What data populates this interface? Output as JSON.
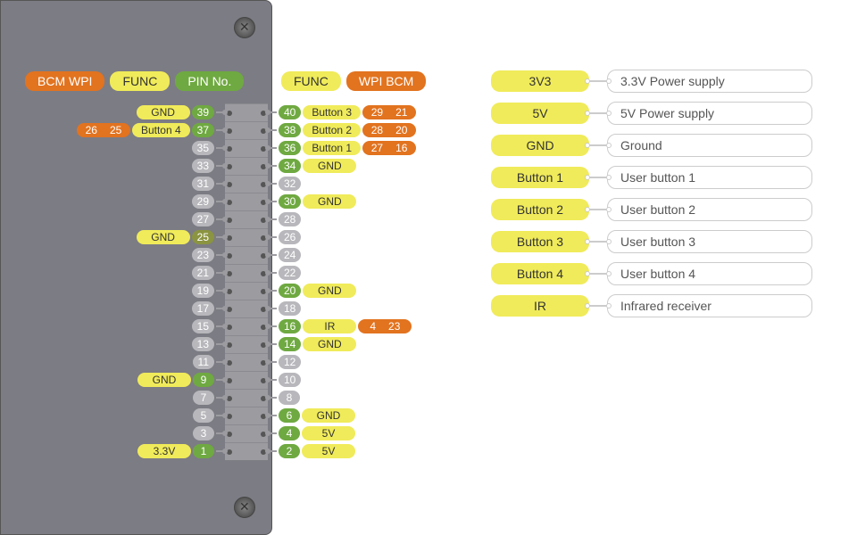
{
  "colors": {
    "orange": "#e2731f",
    "yellow": "#f0eb5a",
    "green": "#6fa941",
    "gray": "#b7b7bc",
    "board": "#7c7c84"
  },
  "header_left": [
    {
      "text": "BCM   WPI",
      "cls": "pill-orange"
    },
    {
      "text": "FUNC",
      "cls": "pill-yellow"
    },
    {
      "text": "PIN No.",
      "cls": "pill-green"
    }
  ],
  "header_right": [
    {
      "text": "FUNC",
      "cls": "pill-yellow"
    },
    {
      "text": "WPI   BCM",
      "cls": "pill-orange"
    }
  ],
  "rows": [
    {
      "left": {
        "num": "39",
        "numcls": "num-green",
        "func": "GND"
      },
      "right": {
        "num": "40",
        "numcls": "num-green",
        "func": "Button 3",
        "wpi": "29",
        "bcm": "21"
      }
    },
    {
      "left": {
        "num": "37",
        "numcls": "num-green",
        "func": "Button 4",
        "wpi": "25",
        "bcm": "26"
      },
      "right": {
        "num": "38",
        "numcls": "num-green",
        "func": "Button 2",
        "wpi": "28",
        "bcm": "20"
      }
    },
    {
      "left": {
        "num": "35",
        "numcls": "num-gray"
      },
      "right": {
        "num": "36",
        "numcls": "num-green",
        "func": "Button 1",
        "wpi": "27",
        "bcm": "16"
      }
    },
    {
      "left": {
        "num": "33",
        "numcls": "num-gray"
      },
      "right": {
        "num": "34",
        "numcls": "num-green",
        "func": "GND"
      }
    },
    {
      "left": {
        "num": "31",
        "numcls": "num-gray"
      },
      "right": {
        "num": "32",
        "numcls": "num-gray"
      }
    },
    {
      "left": {
        "num": "29",
        "numcls": "num-gray"
      },
      "right": {
        "num": "30",
        "numcls": "num-green",
        "func": "GND"
      }
    },
    {
      "left": {
        "num": "27",
        "numcls": "num-gray"
      },
      "right": {
        "num": "28",
        "numcls": "num-gray"
      }
    },
    {
      "left": {
        "num": "25",
        "numcls": "num-olive",
        "func": "GND"
      },
      "right": {
        "num": "26",
        "numcls": "num-gray"
      }
    },
    {
      "left": {
        "num": "23",
        "numcls": "num-gray"
      },
      "right": {
        "num": "24",
        "numcls": "num-gray"
      }
    },
    {
      "left": {
        "num": "21",
        "numcls": "num-gray"
      },
      "right": {
        "num": "22",
        "numcls": "num-gray"
      }
    },
    {
      "left": {
        "num": "19",
        "numcls": "num-gray"
      },
      "right": {
        "num": "20",
        "numcls": "num-green",
        "func": "GND"
      }
    },
    {
      "left": {
        "num": "17",
        "numcls": "num-gray"
      },
      "right": {
        "num": "18",
        "numcls": "num-gray"
      }
    },
    {
      "left": {
        "num": "15",
        "numcls": "num-gray"
      },
      "right": {
        "num": "16",
        "numcls": "num-green",
        "func": "IR",
        "wpi": "4",
        "bcm": "23"
      }
    },
    {
      "left": {
        "num": "13",
        "numcls": "num-gray"
      },
      "right": {
        "num": "14",
        "numcls": "num-green",
        "func": "GND"
      }
    },
    {
      "left": {
        "num": "11",
        "numcls": "num-gray"
      },
      "right": {
        "num": "12",
        "numcls": "num-gray"
      }
    },
    {
      "left": {
        "num": "9",
        "numcls": "num-green",
        "func": "GND"
      },
      "right": {
        "num": "10",
        "numcls": "num-gray"
      }
    },
    {
      "left": {
        "num": "7",
        "numcls": "num-gray"
      },
      "right": {
        "num": "8",
        "numcls": "num-gray"
      }
    },
    {
      "left": {
        "num": "5",
        "numcls": "num-gray"
      },
      "right": {
        "num": "6",
        "numcls": "num-green",
        "func": "GND"
      }
    },
    {
      "left": {
        "num": "3",
        "numcls": "num-gray"
      },
      "right": {
        "num": "4",
        "numcls": "num-green",
        "func": "5V"
      }
    },
    {
      "left": {
        "num": "1",
        "numcls": "num-green",
        "func": "3.3V"
      },
      "right": {
        "num": "2",
        "numcls": "num-green",
        "func": "5V"
      }
    }
  ],
  "legend": [
    {
      "key": "3V3",
      "desc": "3.3V Power supply"
    },
    {
      "key": "5V",
      "desc": "5V Power supply"
    },
    {
      "key": "GND",
      "desc": "Ground"
    },
    {
      "key": "Button 1",
      "desc": "User button 1"
    },
    {
      "key": "Button 2",
      "desc": "User button 2"
    },
    {
      "key": "Button 3",
      "desc": "User button 3"
    },
    {
      "key": "Button 4",
      "desc": "User button 4"
    },
    {
      "key": "IR",
      "desc": "Infrared receiver"
    }
  ]
}
